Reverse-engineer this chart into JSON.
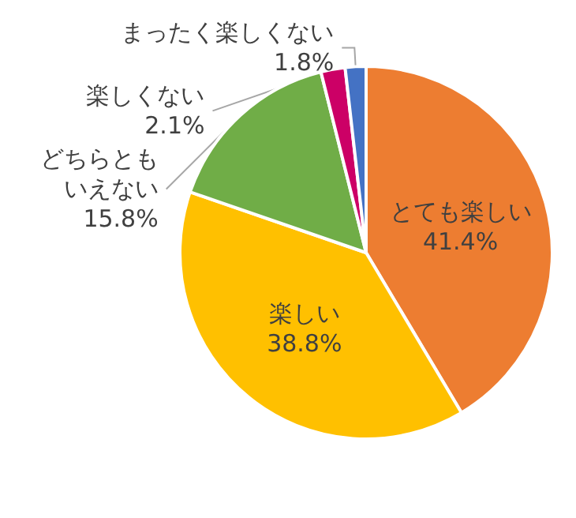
{
  "chart_data": {
    "type": "pie",
    "categories": [
      "とても楽しい",
      "楽しい",
      "どちらともいえない",
      "楽しくない",
      "まったく楽しくない"
    ],
    "values": [
      41.4,
      38.8,
      15.8,
      2.1,
      1.8
    ],
    "value_labels": [
      "41.4%",
      "38.8%",
      "15.8%",
      "2.1%",
      "1.8%"
    ],
    "colors": [
      "#ed7d31",
      "#ffc000",
      "#70ad47",
      "#cc0066",
      "#4472c4"
    ],
    "legend": false
  }
}
